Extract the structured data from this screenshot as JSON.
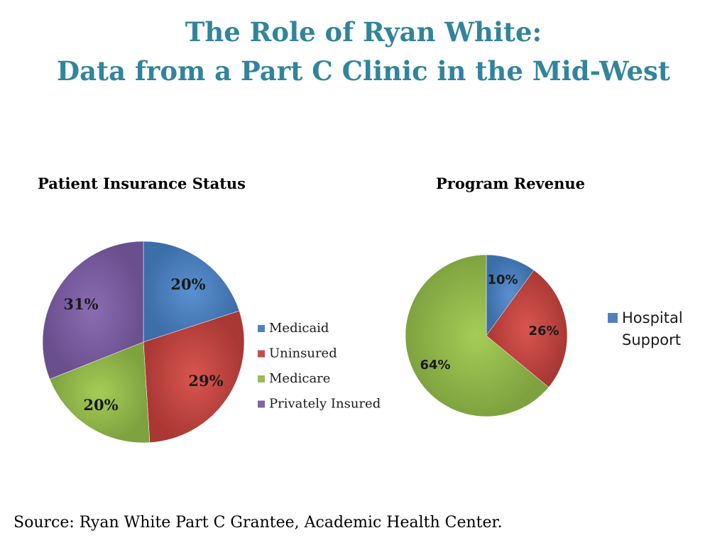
{
  "slide": {
    "title_line1": "The Role of Ryan White:",
    "title_line2": "Data from a Part C Clinic in the Mid-West",
    "source": "Source: Ryan White Part C Grantee, Academic Health Center."
  },
  "chart_data": [
    {
      "type": "pie",
      "title": "Patient Insurance Status",
      "categories": [
        "Medicaid",
        "Uninsured",
        "Medicare",
        "Privately Insured"
      ],
      "values": [
        20,
        29,
        20,
        31
      ],
      "labels": [
        "20%",
        "29%",
        "20%",
        "31%"
      ],
      "colors": [
        "#4f81bd",
        "#c0504d",
        "#9bbb59",
        "#8064a2"
      ],
      "legend": "right"
    },
    {
      "type": "pie",
      "title": "Program Revenue",
      "categories": [
        "Hospital Support",
        "",
        ""
      ],
      "values": [
        10,
        26,
        64
      ],
      "labels": [
        "10%",
        "26%",
        "64%"
      ],
      "colors": [
        "#4f81bd",
        "#c0504d",
        "#9bbb59"
      ],
      "legend": "right",
      "legend_lines": [
        "Hospital",
        "Support"
      ]
    }
  ]
}
